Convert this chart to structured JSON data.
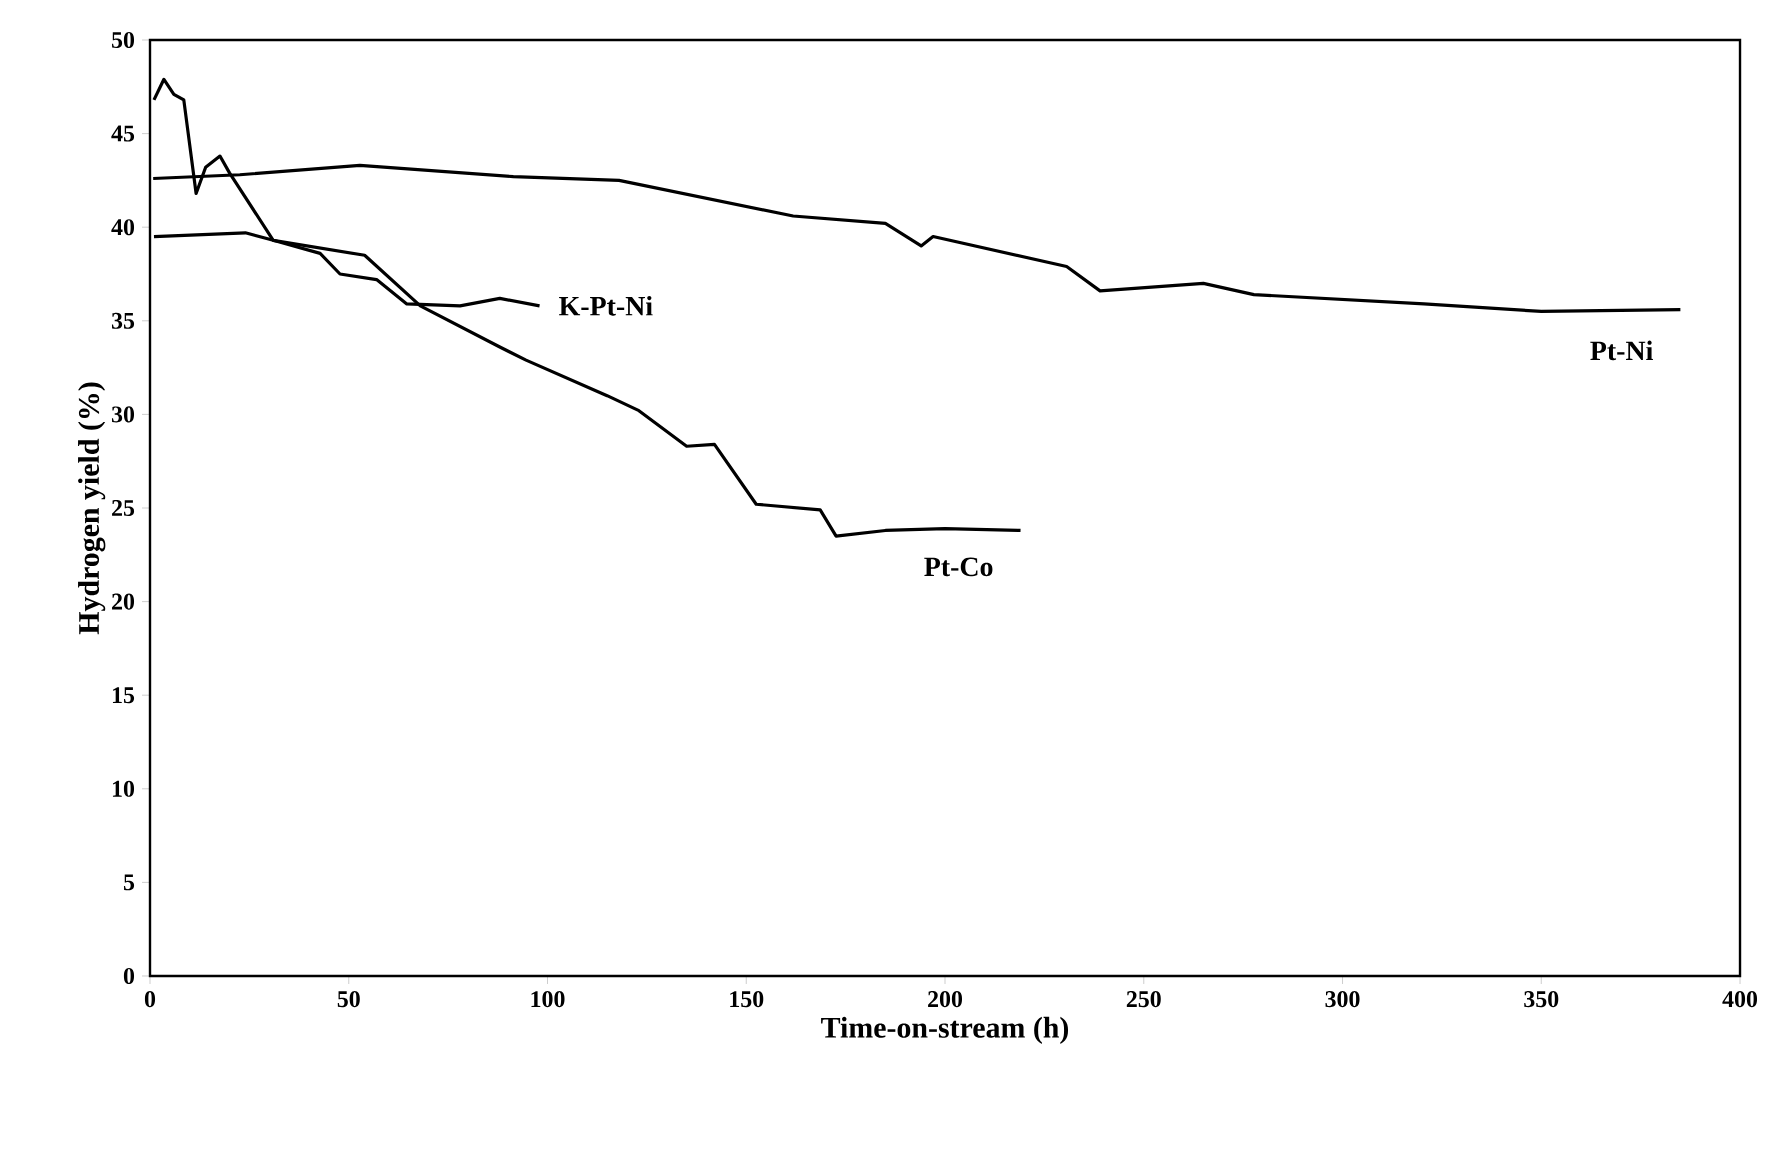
{
  "chart_data": {
    "type": "line",
    "xlabel": "Time-on-stream (h)",
    "ylabel": "Hydrogen yield (%)",
    "xlim": [
      0,
      400
    ],
    "ylim": [
      0,
      50
    ],
    "xticks": [
      0,
      50,
      100,
      150,
      200,
      250,
      300,
      350,
      400
    ],
    "yticks": [
      0,
      5,
      10,
      15,
      20,
      25,
      30,
      35,
      40,
      45,
      50
    ],
    "grid": false,
    "marker": "none",
    "line_style": "solid",
    "series": [
      {
        "name": "K-Pt-Ni",
        "color": "#000000",
        "x": [
          1,
          3.5,
          6,
          8.5,
          11.6,
          14,
          17.6,
          20,
          31,
          42.8,
          47.8,
          57,
          64.6,
          78,
          88,
          98
        ],
        "values": [
          46.8,
          47.9,
          47.1,
          46.8,
          41.8,
          43.2,
          43.8,
          42.9,
          39.3,
          38.6,
          37.5,
          37.2,
          35.9,
          35.8,
          36.2,
          35.8
        ]
      },
      {
        "name": "Pt-Co",
        "color": "#000000",
        "x": [
          1,
          24,
          31,
          54,
          68,
          88,
          94.6,
          115,
          123,
          135,
          142,
          152.5,
          168.6,
          172.6,
          185,
          200,
          219
        ],
        "values": [
          39.5,
          39.7,
          39.3,
          38.5,
          35.8,
          33.6,
          32.9,
          31.0,
          30.2,
          28.3,
          28.4,
          25.2,
          24.9,
          23.5,
          23.8,
          23.9,
          23.8
        ]
      },
      {
        "name": "Pt-Ni",
        "color": "#000000",
        "x": [
          0.8,
          22.6,
          52.8,
          91.4,
          118,
          161.8,
          185,
          194,
          197,
          230.6,
          239,
          265,
          277.7,
          320.5,
          350,
          385
        ],
        "values": [
          42.6,
          42.8,
          43.3,
          42.7,
          42.5,
          40.6,
          40.2,
          39.0,
          39.5,
          37.9,
          36.6,
          37.0,
          36.4,
          35.9,
          35.5,
          35.6
        ]
      }
    ]
  }
}
